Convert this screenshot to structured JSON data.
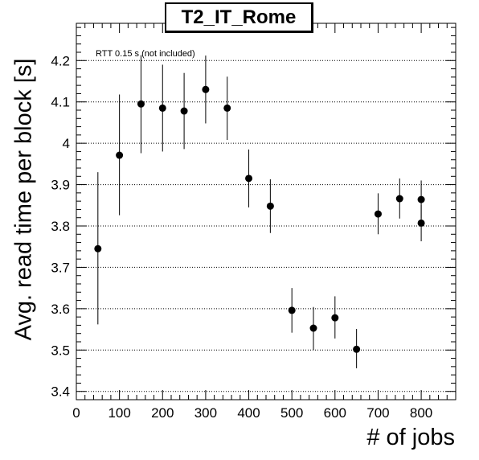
{
  "chart_data": {
    "type": "scatter",
    "title": "T2_IT_Rome",
    "annotation": "RTT 0.15 s (not included)",
    "xlabel": "# of jobs",
    "ylabel": "Avg. read time per block [s]",
    "xlim": [
      0,
      880
    ],
    "ylim": [
      3.38,
      4.29
    ],
    "x_ticks": [
      0,
      100,
      200,
      300,
      400,
      500,
      600,
      700,
      800
    ],
    "y_ticks": [
      3.4,
      3.5,
      3.6,
      3.7,
      3.8,
      3.9,
      4,
      4.1,
      4.2
    ],
    "y_tick_labels": [
      "3.4",
      "3.5",
      "3.6",
      "3.7",
      "3.8",
      "3.9",
      "4",
      "4.1",
      "4.2"
    ],
    "grid": "horizontal",
    "colors": {
      "marker": "#000000",
      "grid": "#000000"
    },
    "points": [
      {
        "x": 50,
        "y": 3.745,
        "err_low": 3.562,
        "err_high": 3.93
      },
      {
        "x": 100,
        "y": 3.971,
        "err_low": 3.826,
        "err_high": 4.118
      },
      {
        "x": 150,
        "y": 4.095,
        "err_low": 3.976,
        "err_high": 4.213
      },
      {
        "x": 200,
        "y": 4.085,
        "err_low": 3.98,
        "err_high": 4.19
      },
      {
        "x": 250,
        "y": 4.078,
        "err_low": 3.986,
        "err_high": 4.17
      },
      {
        "x": 300,
        "y": 4.13,
        "err_low": 4.048,
        "err_high": 4.212
      },
      {
        "x": 350,
        "y": 4.085,
        "err_low": 4.008,
        "err_high": 4.161
      },
      {
        "x": 400,
        "y": 3.915,
        "err_low": 3.845,
        "err_high": 3.985
      },
      {
        "x": 450,
        "y": 3.848,
        "err_low": 3.783,
        "err_high": 3.913
      },
      {
        "x": 500,
        "y": 3.596,
        "err_low": 3.542,
        "err_high": 3.65
      },
      {
        "x": 550,
        "y": 3.553,
        "err_low": 3.5,
        "err_high": 3.604
      },
      {
        "x": 600,
        "y": 3.578,
        "err_low": 3.528,
        "err_high": 3.63
      },
      {
        "x": 650,
        "y": 3.502,
        "err_low": 3.456,
        "err_high": 3.551
      },
      {
        "x": 700,
        "y": 3.829,
        "err_low": 3.78,
        "err_high": 3.879
      },
      {
        "x": 750,
        "y": 3.866,
        "err_low": 3.818,
        "err_high": 3.915
      },
      {
        "x": 800,
        "y": 3.864,
        "err_low": 3.818,
        "err_high": 3.91
      },
      {
        "x": 800,
        "y": 3.807,
        "err_low": 3.763,
        "err_high": 3.851
      }
    ]
  }
}
